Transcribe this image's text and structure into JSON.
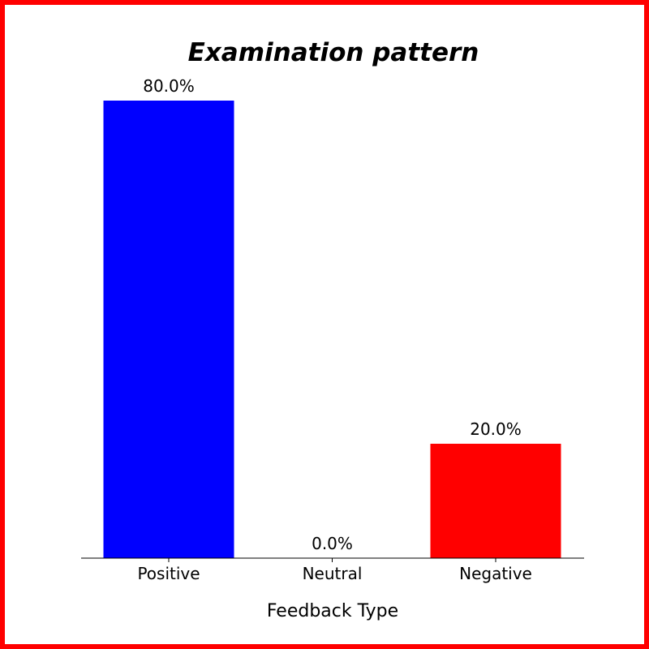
{
  "chart_data": {
    "type": "bar",
    "title": "Examination pattern",
    "xlabel": "Feedback Type",
    "ylabel": "",
    "categories": [
      "Positive",
      "Neutral",
      "Negative"
    ],
    "values": [
      80.0,
      0.0,
      20.0
    ],
    "data_labels": [
      "80.0%",
      "0.0%",
      "20.0%"
    ],
    "colors": [
      "#0000ff",
      "#808080",
      "#ff0000"
    ],
    "ylim": [
      0,
      80
    ],
    "grid": false,
    "legend": "none"
  },
  "frame_color": "#ff0000"
}
